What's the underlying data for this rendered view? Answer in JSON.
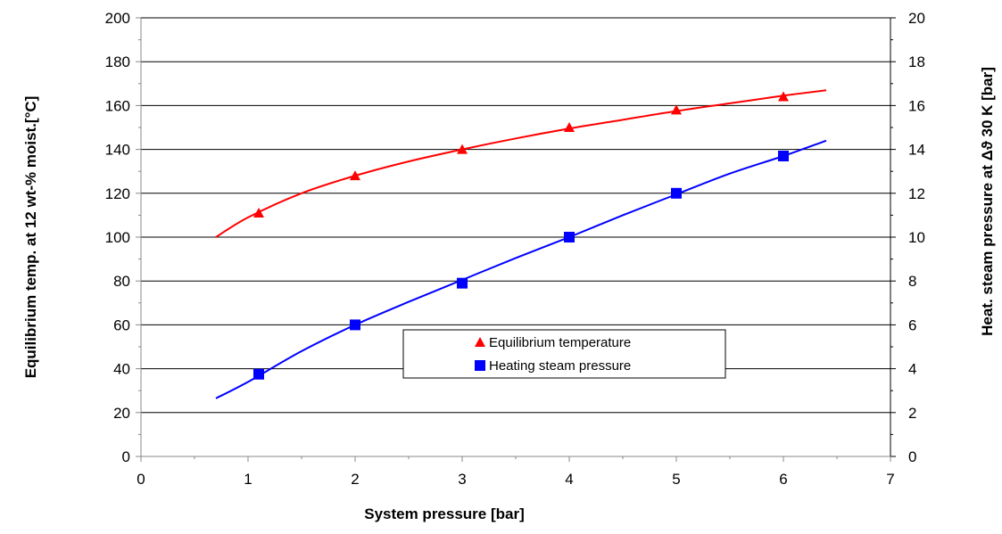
{
  "chart_data": {
    "type": "scatter",
    "title": "",
    "xlabel": "System pressure [bar]",
    "ylabel": "Equilibrium temp. at 12 wt-% moist.[°C]",
    "y2label": "Heat. steam pressure at Δϑ 30 K [bar]",
    "xlim": [
      0,
      7
    ],
    "ylim": [
      0,
      200
    ],
    "y2lim": [
      0,
      20
    ],
    "x_ticks": [
      "0",
      "1",
      "2",
      "3",
      "4",
      "5",
      "6",
      "7"
    ],
    "y_ticks": [
      "0",
      "20",
      "40",
      "60",
      "80",
      "100",
      "120",
      "140",
      "160",
      "180",
      "200"
    ],
    "y2_ticks": [
      "0",
      "2",
      "4",
      "6",
      "8",
      "10",
      "12",
      "14",
      "16",
      "18",
      "20"
    ],
    "grid": "horizontal",
    "legend_position": "center-bottom",
    "series": [
      {
        "name": "Equilibrium temperature",
        "axis": "left",
        "marker": "triangle",
        "color": "#ff0000",
        "points": [
          [
            1.1,
            111
          ],
          [
            2,
            128
          ],
          [
            3,
            140
          ],
          [
            4,
            150
          ],
          [
            5,
            158
          ],
          [
            6,
            164
          ]
        ],
        "trend": [
          [
            0.7,
            100
          ],
          [
            1,
            109
          ],
          [
            1.5,
            120
          ],
          [
            2,
            128
          ],
          [
            2.5,
            134.5
          ],
          [
            3,
            140
          ],
          [
            3.5,
            145
          ],
          [
            4,
            149.5
          ],
          [
            4.5,
            153.5
          ],
          [
            5,
            157.5
          ],
          [
            5.5,
            161
          ],
          [
            6,
            164.5
          ],
          [
            6.4,
            167
          ]
        ]
      },
      {
        "name": "Heating steam pressure",
        "axis": "right",
        "marker": "square",
        "color": "#0000ff",
        "points": [
          [
            1.1,
            3.75
          ],
          [
            2,
            6.0
          ],
          [
            3,
            7.9
          ],
          [
            4,
            10.0
          ],
          [
            5,
            12.0
          ],
          [
            6,
            13.7
          ]
        ],
        "trend": [
          [
            0.7,
            2.65
          ],
          [
            1,
            3.4
          ],
          [
            1.5,
            4.8
          ],
          [
            2,
            6.0
          ],
          [
            2.5,
            7.05
          ],
          [
            3,
            8.05
          ],
          [
            3.5,
            9.05
          ],
          [
            4,
            10.0
          ],
          [
            4.5,
            11.0
          ],
          [
            5,
            11.95
          ],
          [
            5.5,
            12.9
          ],
          [
            6,
            13.7
          ],
          [
            6.4,
            14.4
          ]
        ]
      }
    ]
  }
}
